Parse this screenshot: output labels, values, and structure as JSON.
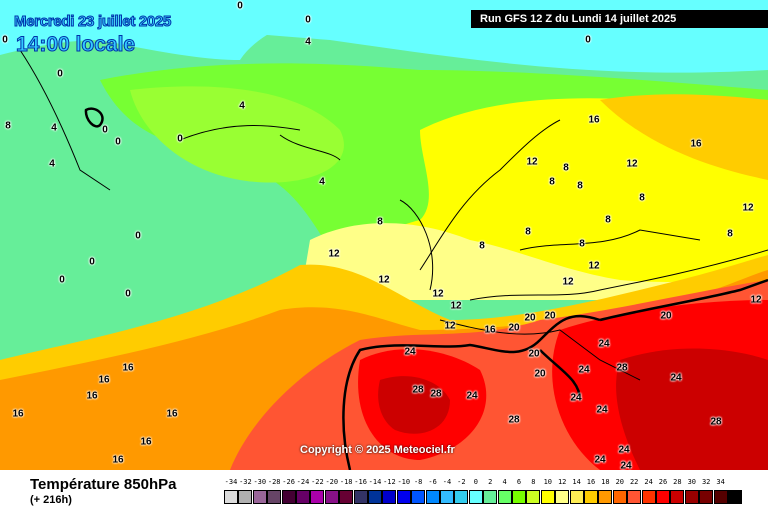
{
  "header": {
    "date": "Mercredi 23 juillet 2025",
    "local_time": "14:00 locale",
    "run": "Run GFS 12 Z du Lundi 14 juillet 2025"
  },
  "copyright": "Copyright © 2025 Meteociel.fr",
  "footer": {
    "title": "Température 850hPa",
    "lead": "(+ 216h)"
  },
  "legend": {
    "labels": [
      "-34",
      "-32",
      "-30",
      "-28",
      "-26",
      "-24",
      "-22",
      "-20",
      "-18",
      "-16",
      "-14",
      "-12",
      "-10",
      "-8",
      "-6",
      "-4",
      "-2",
      "0",
      "2",
      "4",
      "6",
      "8",
      "10",
      "12",
      "14",
      "16",
      "18",
      "20",
      "22",
      "24",
      "26",
      "28",
      "30",
      "32",
      "34"
    ],
    "colors": [
      "#dcdcdc",
      "#b0b0b0",
      "#996699",
      "#664466",
      "#440033",
      "#660066",
      "#aa00aa",
      "#881188",
      "#660033",
      "#333366",
      "#003399",
      "#0000cc",
      "#0000ee",
      "#0055ff",
      "#0088ff",
      "#33bbff",
      "#33ccee",
      "#66ffff",
      "#66ee99",
      "#66ff66",
      "#77ff00",
      "#ccff22",
      "#ffff00",
      "#ffff88",
      "#ffee55",
      "#ffcc00",
      "#ff9900",
      "#ff6600",
      "#ff5533",
      "#ff3300",
      "#ff0000",
      "#cc0000",
      "#990000",
      "#770000",
      "#550000",
      "#000000"
    ]
  },
  "contour_labels": [
    "0",
    "0",
    "0",
    "0",
    "0",
    "4",
    "4",
    "8",
    "4",
    "4",
    "0",
    "0",
    "0",
    "0",
    "0",
    "4",
    "8",
    "8",
    "12",
    "12",
    "8",
    "16",
    "12",
    "16",
    "12",
    "8",
    "8",
    "8",
    "12",
    "8",
    "8",
    "8",
    "12",
    "12",
    "12",
    "12",
    "12",
    "16",
    "20",
    "20",
    "20",
    "24",
    "20",
    "24",
    "20",
    "20",
    "24",
    "24",
    "28",
    "28",
    "24",
    "24",
    "28",
    "24",
    "28",
    "24",
    "24",
    "28",
    "24",
    "16",
    "16",
    "16",
    "16",
    "16",
    "16",
    "16",
    "0",
    "0",
    "8",
    "12"
  ]
}
